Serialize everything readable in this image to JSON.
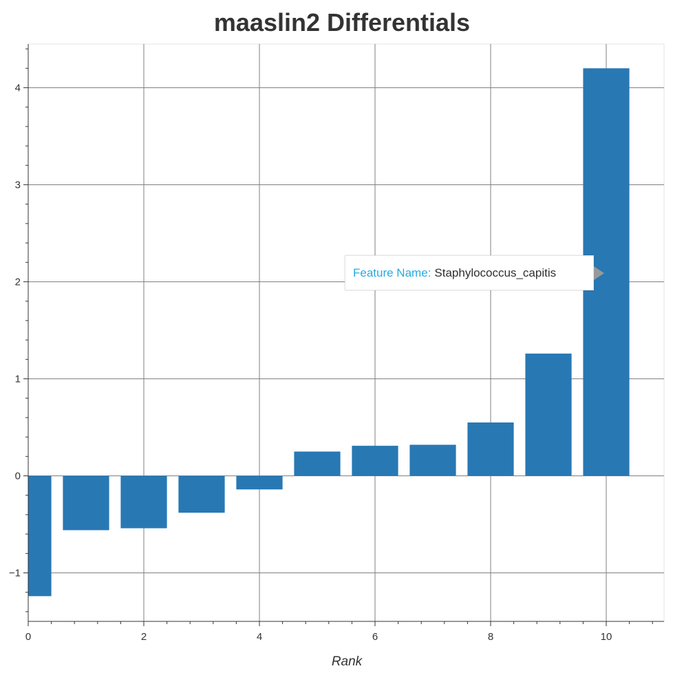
{
  "chart_data": {
    "type": "bar",
    "title": "maaslin2 Differentials",
    "xlabel": "Rank",
    "ylabel": "",
    "x": [
      0,
      1,
      2,
      3,
      4,
      5,
      6,
      7,
      8,
      9,
      10
    ],
    "values": [
      -1.24,
      -0.56,
      -0.54,
      -0.38,
      -0.14,
      0.25,
      0.31,
      0.32,
      0.55,
      1.26,
      4.2
    ],
    "xlim": [
      0,
      11
    ],
    "ylim": [
      -1.5,
      4.45
    ],
    "x_ticks": [
      0,
      2,
      4,
      6,
      8,
      10
    ],
    "y_ticks": [
      -1,
      0,
      1,
      2,
      3,
      4
    ],
    "bar_width": 0.8,
    "grid": true,
    "bar_color": "#2878b4"
  },
  "tooltip": {
    "key": "Feature Name:",
    "value": "Staphylococcus_capitis"
  }
}
